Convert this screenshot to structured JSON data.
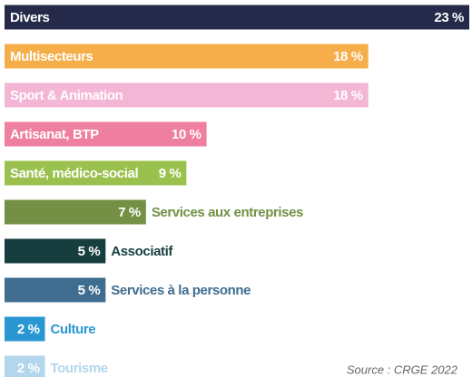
{
  "chart_data": {
    "type": "bar",
    "orientation": "horizontal",
    "categories": [
      "Divers",
      "Multisecteurs",
      "Sport & Animation",
      "Artisanat, BTP",
      "Santé, médico-social",
      "Services aux entreprises",
      "Associatif",
      "Services à la personne",
      "Culture",
      "Tourisme"
    ],
    "values": [
      23,
      18,
      18,
      10,
      9,
      7,
      5,
      5,
      2,
      2
    ],
    "value_labels": [
      "23 %",
      "18 %",
      "18 %",
      "10 %",
      "9 %",
      "7 %",
      "5 %",
      "5 %",
      "2 %",
      "2 %"
    ],
    "colors": [
      "#262a4a",
      "#f5ae4a",
      "#f3b6d5",
      "#ef7fa0",
      "#9ac14e",
      "#739044",
      "#163e3f",
      "#3e6d8f",
      "#2a97d2",
      "#b3d6ec"
    ],
    "source": "Source : CRGE 2022"
  }
}
